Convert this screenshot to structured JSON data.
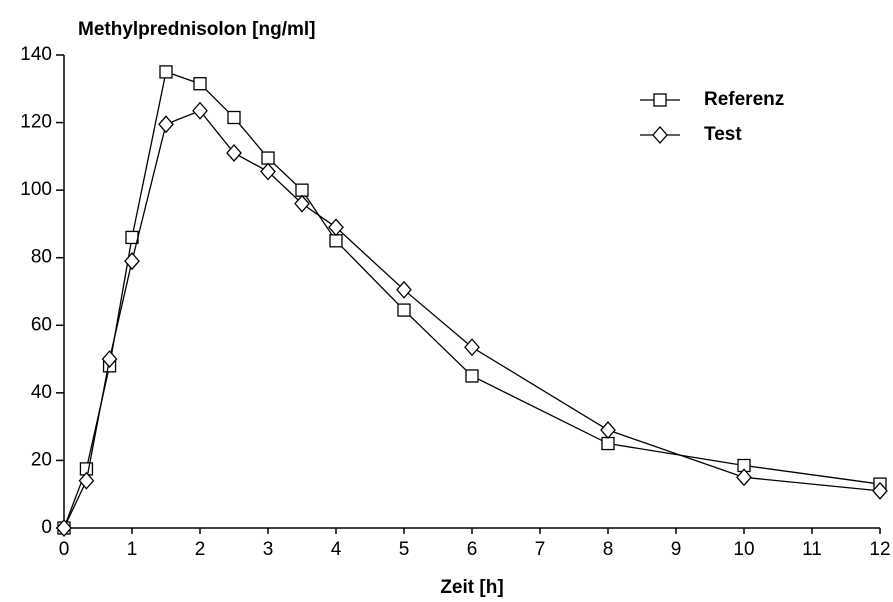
{
  "chart_data": {
    "type": "line",
    "title": "Methylprednisolon [ng/ml]",
    "x_label": "Zeit [h]",
    "x": [
      0,
      0.33,
      0.67,
      1,
      1.5,
      2,
      2.5,
      3,
      3.5,
      4,
      5,
      6,
      8,
      10,
      12
    ],
    "series": [
      {
        "name": "Referenz",
        "color": "#000000",
        "marker": "square",
        "values": [
          0,
          17.5,
          48,
          86,
          135,
          131.5,
          121.5,
          109.5,
          100,
          85,
          64.5,
          45,
          25,
          18.5,
          13
        ]
      },
      {
        "name": "Test",
        "color": "#000000",
        "marker": "diamond",
        "values": [
          0,
          14,
          50,
          79,
          119.5,
          123.5,
          111,
          105.5,
          96,
          89,
          70.5,
          53.5,
          29,
          15,
          11
        ]
      }
    ],
    "xlim": [
      0,
      12
    ],
    "xticks": [
      0,
      1,
      2,
      3,
      4,
      5,
      6,
      7,
      8,
      9,
      10,
      11,
      12
    ],
    "ylim": [
      0,
      140
    ],
    "yticks": [
      0,
      20,
      40,
      60,
      80,
      100,
      120,
      140
    ],
    "grid": false,
    "legend": "upper right"
  }
}
